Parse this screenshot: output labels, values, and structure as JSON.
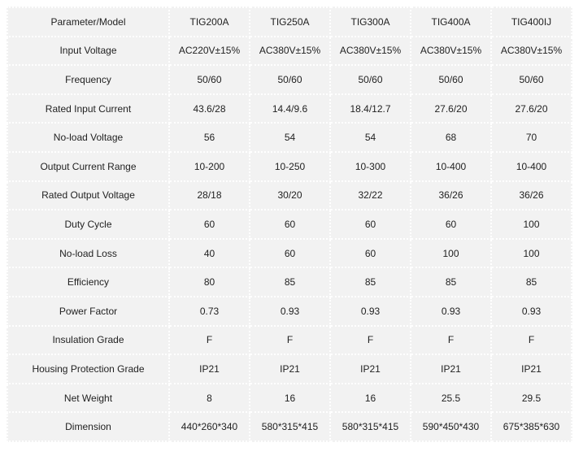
{
  "table": {
    "header": [
      "Parameter/Model",
      "TIG200A",
      "TIG250A",
      "TIG300A",
      "TIG400A",
      "TIG400IJ"
    ],
    "rows": [
      [
        "Input Voltage",
        "AC220V±15%",
        "AC380V±15%",
        "AC380V±15%",
        "AC380V±15%",
        "AC380V±15%"
      ],
      [
        "Frequency",
        "50/60",
        "50/60",
        "50/60",
        "50/60",
        "50/60"
      ],
      [
        "Rated Input Current",
        "43.6/28",
        "14.4/9.6",
        "18.4/12.7",
        "27.6/20",
        "27.6/20"
      ],
      [
        "No-load Voltage",
        "56",
        "54",
        "54",
        "68",
        "70"
      ],
      [
        "Output Current Range",
        "10-200",
        "10-250",
        "10-300",
        "10-400",
        "10-400"
      ],
      [
        "Rated Output Voltage",
        "28/18",
        "30/20",
        "32/22",
        "36/26",
        "36/26"
      ],
      [
        "Duty Cycle",
        "60",
        "60",
        "60",
        "60",
        "100"
      ],
      [
        "No-load Loss",
        "40",
        "60",
        "60",
        "100",
        "100"
      ],
      [
        "Efficiency",
        "80",
        "85",
        "85",
        "85",
        "85"
      ],
      [
        "Power Factor",
        "0.73",
        "0.93",
        "0.93",
        "0.93",
        "0.93"
      ],
      [
        "Insulation Grade",
        "F",
        "F",
        "F",
        "F",
        "F"
      ],
      [
        "Housing Protection Grade",
        "IP21",
        "IP21",
        "IP21",
        "IP21",
        "IP21"
      ],
      [
        "Net Weight",
        "8",
        "16",
        "16",
        "25.5",
        "29.5"
      ],
      [
        "Dimension",
        "440*260*340",
        "580*315*415",
        "580*315*415",
        "590*450*430",
        "675*385*630"
      ]
    ]
  }
}
